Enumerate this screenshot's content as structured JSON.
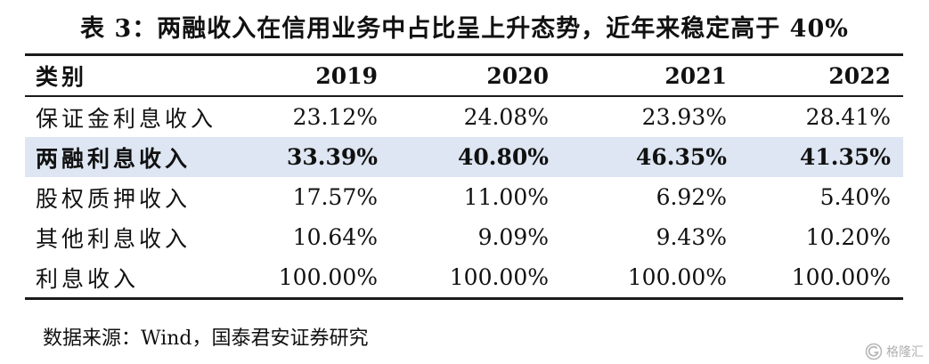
{
  "title": "表 3：两融收入在信用业务中占比呈上升态势，近年来稳定高于 40%",
  "table": {
    "headers": [
      "类别",
      "2019",
      "2020",
      "2021",
      "2022"
    ],
    "rows": [
      {
        "label": "保证金利息收入",
        "values": [
          "23.12%",
          "24.08%",
          "23.93%",
          "28.41%"
        ]
      },
      {
        "label": "两融利息收入",
        "values": [
          "33.39%",
          "40.80%",
          "46.35%",
          "41.35%"
        ]
      },
      {
        "label": "股权质押收入",
        "values": [
          "17.57%",
          "11.00%",
          "6.92%",
          "5.40%"
        ]
      },
      {
        "label": "其他利息收入",
        "values": [
          "10.64%",
          "9.09%",
          "9.43%",
          "10.20%"
        ]
      },
      {
        "label": "利息收入",
        "values": [
          "100.00%",
          "100.00%",
          "100.00%",
          "100.00%"
        ]
      }
    ],
    "highlight_color": "#dde6f2"
  },
  "source": "数据来源：Wind，国泰君安证券研究",
  "watermark": {
    "text": "格隆汇",
    "icon": "gelonghui-logo-icon"
  }
}
